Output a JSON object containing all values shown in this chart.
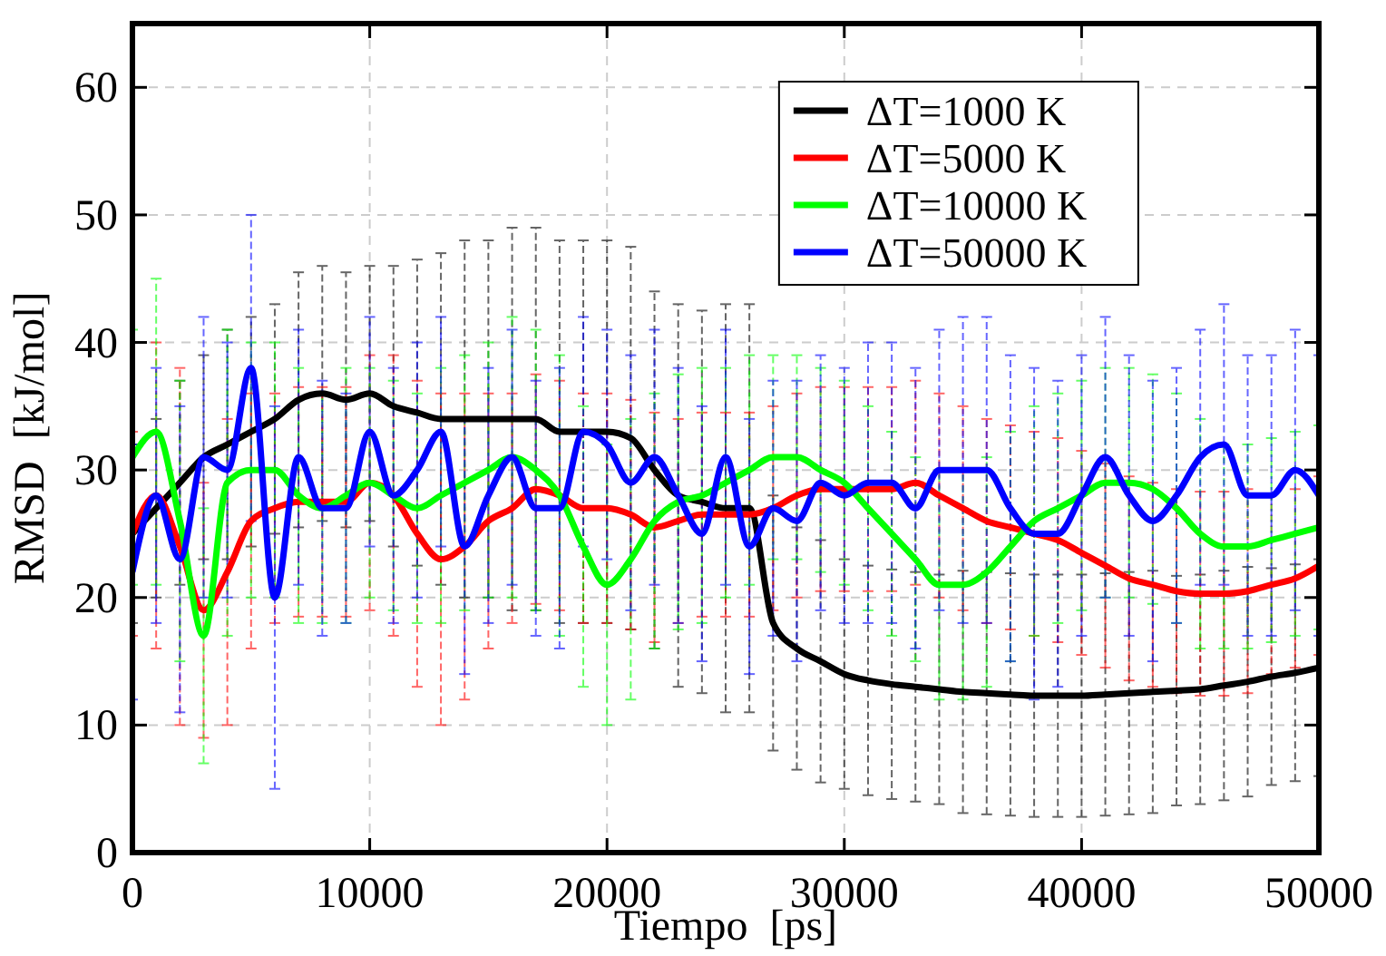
{
  "chart_data": {
    "type": "line",
    "xlabel": "Tiempo  [ps]",
    "ylabel": "RMSD  [kJ/mol]",
    "xlim": [
      0,
      50000
    ],
    "ylim": [
      0,
      65
    ],
    "xticks": [
      0,
      10000,
      20000,
      30000,
      40000,
      50000
    ],
    "yticks": [
      0,
      10,
      20,
      30,
      40,
      50,
      60
    ],
    "grid": true,
    "legend": "top right",
    "marker": "none",
    "line_style": "solid",
    "x": [
      0,
      1000,
      2000,
      3000,
      4000,
      5000,
      6000,
      7000,
      8000,
      9000,
      10000,
      11000,
      12000,
      13000,
      14000,
      15000,
      16000,
      17000,
      18000,
      19000,
      20000,
      21000,
      22000,
      23000,
      24000,
      25000,
      26000,
      27000,
      28000,
      29000,
      30000,
      31000,
      32000,
      33000,
      34000,
      35000,
      36000,
      37000,
      38000,
      39000,
      40000,
      41000,
      42000,
      43000,
      44000,
      45000,
      46000,
      47000,
      48000,
      49000,
      50000
    ],
    "series": [
      {
        "name": "ΔT=1000 K",
        "color": "#000000",
        "values": [
          25,
          27,
          29,
          31,
          32,
          33,
          34,
          35.5,
          36,
          35.5,
          36,
          35,
          34.5,
          34,
          34,
          34,
          34,
          34,
          33,
          33,
          33,
          32.5,
          30,
          28,
          27.5,
          27,
          27,
          18,
          16,
          15,
          14,
          13.5,
          13.2,
          13,
          12.8,
          12.6,
          12.5,
          12.4,
          12.3,
          12.3,
          12.3,
          12.4,
          12.5,
          12.6,
          12.7,
          12.8,
          13.1,
          13.4,
          13.8,
          14.1,
          14.5
        ],
        "errors": [
          7,
          7,
          8,
          8,
          9,
          9,
          9,
          10,
          10,
          10,
          10,
          11,
          12,
          13,
          14,
          14,
          15,
          15,
          15,
          15,
          15,
          15,
          14,
          15,
          15,
          16,
          16,
          10,
          9.5,
          9.5,
          9,
          9,
          9,
          9,
          9,
          9.5,
          9.5,
          9.5,
          9.5,
          9.5,
          9.5,
          9.5,
          9.5,
          9.5,
          9,
          9,
          9,
          9,
          8.5,
          8.5,
          8.5
        ]
      },
      {
        "name": "ΔT=5000 K",
        "color": "#ff0000",
        "values": [
          25,
          28,
          24,
          19,
          22,
          26,
          27,
          27.5,
          27.5,
          27.5,
          29,
          28,
          25,
          23,
          24,
          26,
          27,
          28.5,
          28,
          27,
          27,
          26.5,
          25.5,
          26,
          26.5,
          26.5,
          26.5,
          27,
          28,
          28.5,
          28.5,
          28.5,
          28.5,
          29,
          28,
          27,
          26,
          25.5,
          25,
          24.5,
          23.5,
          22.5,
          21.5,
          21,
          20.5,
          20.3,
          20.3,
          20.5,
          21,
          21.5,
          22.5
        ],
        "errors": [
          8,
          12,
          14,
          10,
          12,
          10,
          9,
          9,
          9,
          9,
          10,
          11,
          12,
          13,
          12,
          10,
          9,
          9,
          9,
          9,
          9,
          9,
          9,
          8,
          8,
          8,
          8,
          8,
          8,
          8,
          8,
          8,
          8,
          8,
          8,
          8,
          8,
          8,
          8,
          8,
          8,
          8,
          8,
          8,
          8,
          8,
          8,
          8,
          7,
          7,
          7
        ]
      },
      {
        "name": "ΔT=10000 K",
        "color": "#00ff00",
        "values": [
          31,
          33,
          26,
          17,
          29,
          30,
          30,
          28,
          27,
          28,
          29,
          28,
          27,
          28,
          29,
          30,
          31,
          30,
          28,
          24,
          21,
          23,
          26,
          27.5,
          28,
          29,
          30,
          31,
          31,
          30,
          29,
          27,
          25,
          23,
          21,
          21,
          22,
          24,
          26,
          27,
          28,
          29,
          29,
          28.5,
          27,
          25,
          24,
          24,
          24.5,
          25,
          25.5
        ],
        "errors": [
          10,
          12,
          11,
          10,
          12,
          10,
          10,
          10,
          9,
          10,
          9,
          9,
          9,
          10,
          10,
          10,
          11,
          11,
          11,
          11,
          11,
          11,
          10,
          10,
          10,
          9,
          9,
          8,
          8,
          8,
          8,
          8,
          8,
          8,
          9,
          9,
          9,
          9,
          9,
          9,
          9,
          9,
          9,
          9,
          9,
          9,
          8,
          8,
          8,
          8,
          8
        ]
      },
      {
        "name": "ΔT=50000 K",
        "color": "#0000ff",
        "values": [
          22,
          28,
          23,
          31,
          30,
          38,
          20,
          31,
          27,
          27,
          33,
          28,
          30,
          33,
          24,
          28,
          31,
          27,
          27,
          33,
          32,
          29,
          31,
          28,
          25,
          31,
          24,
          27,
          26,
          29,
          28,
          29,
          29,
          27,
          30,
          30,
          30,
          27,
          25,
          25,
          28,
          31,
          28,
          26,
          28,
          31,
          32,
          28,
          28,
          30,
          28
        ],
        "errors": [
          10,
          10,
          12,
          11,
          10,
          12,
          15,
          10,
          10,
          9,
          9,
          10,
          10,
          9,
          10,
          10,
          10,
          10,
          11,
          9,
          9,
          10,
          10,
          10,
          10,
          10,
          10,
          10,
          11,
          10,
          10,
          11,
          11,
          11,
          11,
          12,
          12,
          12,
          13,
          12,
          11,
          11,
          11,
          11,
          10,
          10,
          11,
          11,
          11,
          11,
          11
        ]
      }
    ]
  }
}
